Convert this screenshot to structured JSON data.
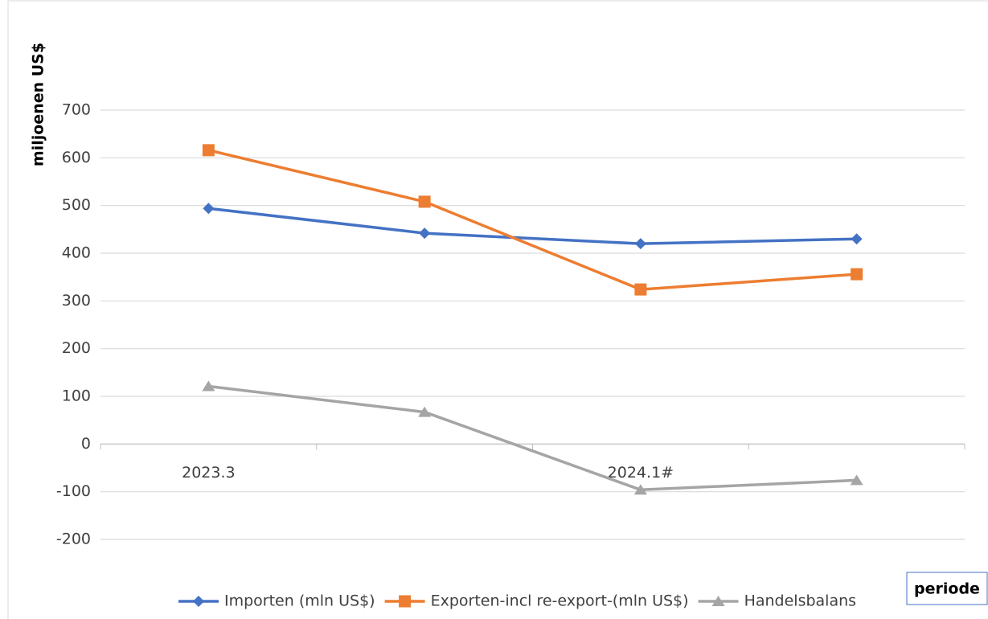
{
  "chart_data": {
    "type": "line",
    "y_label": "miljoenen US$",
    "x_label": "periode",
    "categories": [
      "2023.3",
      null,
      "2024.1#",
      null
    ],
    "series": [
      {
        "name": "Importen (mln US$)",
        "color": "#4472c4",
        "marker": "diamond",
        "values": [
          494,
          442,
          420,
          430
        ]
      },
      {
        "name": "Exporten-incl re-export-(mln US$)",
        "color": "#ed7d31",
        "marker": "square",
        "values": [
          616,
          508,
          324,
          356
        ]
      },
      {
        "name": "Handelsbalans",
        "color": "#a5a5a5",
        "marker": "triangle",
        "values": [
          121,
          67,
          -96,
          -76
        ]
      }
    ],
    "ylim": [
      -200,
      700
    ],
    "yticks": [
      -200,
      -100,
      0,
      100,
      200,
      300,
      400,
      500,
      600,
      700
    ],
    "grid": true,
    "legend": "bottom"
  }
}
